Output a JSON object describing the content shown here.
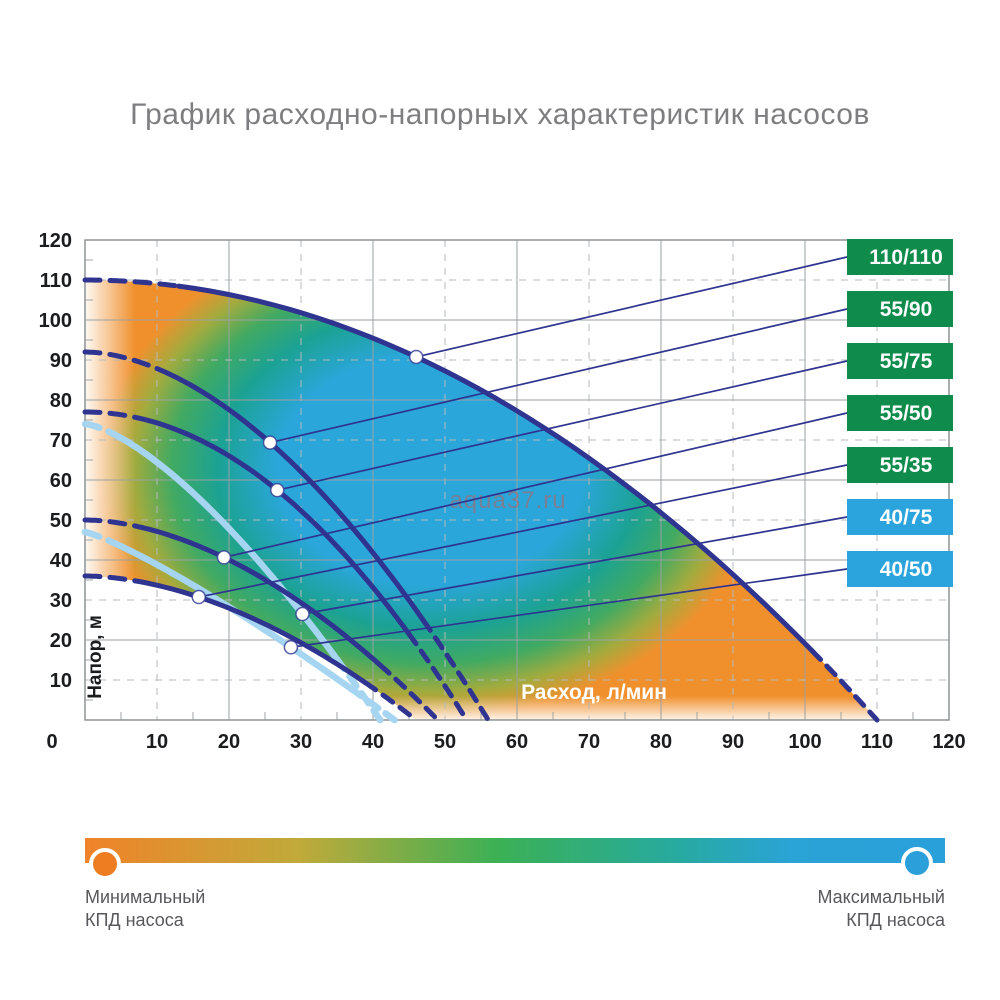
{
  "title": "График расходно-напорных характеристик насосов",
  "watermark": "aqua37.ru",
  "chart_data": {
    "type": "line",
    "title": "График расходно-напорных характеристик насосов",
    "xlabel": "Расход, л/мин",
    "ylabel": "Напор, м",
    "xlim": [
      0,
      120
    ],
    "ylim": [
      0,
      120
    ],
    "x_ticks": [
      0,
      10,
      20,
      30,
      40,
      50,
      60,
      70,
      80,
      90,
      100,
      110,
      120
    ],
    "y_ticks": [
      10,
      20,
      30,
      40,
      50,
      60,
      70,
      80,
      90,
      100,
      110,
      120
    ],
    "grid": "solid every 20 units, dashed every 10 units",
    "legend_position": "right badges",
    "series": [
      {
        "label": "110/110",
        "badge_color": "#0f8c4c",
        "curve_color": "#2e3490",
        "curve_width": 5,
        "h0": 110,
        "qmax": 110,
        "exponent": 2.0,
        "marker_q": 46,
        "key_points": [
          [
            0,
            110
          ],
          [
            46,
            91
          ],
          [
            110,
            0
          ]
        ],
        "dash_until_q": 13,
        "dash_from_q": 101
      },
      {
        "label": "55/90",
        "badge_color": "#0f8c4c",
        "curve_color": "#2e3490",
        "curve_width": 5,
        "h0": 92,
        "qmax": 56,
        "exponent": 1.8,
        "marker_q": 25.7,
        "key_points": [
          [
            0,
            92
          ],
          [
            26,
            69
          ],
          [
            56,
            0
          ]
        ],
        "dash_until_q": 10,
        "dash_from_q": 47
      },
      {
        "label": "55/75",
        "badge_color": "#0f8c4c",
        "curve_color": "#2e3490",
        "curve_width": 5,
        "h0": 77,
        "qmax": 53,
        "exponent": 2.0,
        "marker_q": 26.7,
        "key_points": [
          [
            0,
            77
          ],
          [
            27,
            56
          ],
          [
            53,
            0
          ]
        ],
        "dash_until_q": 9,
        "dash_from_q": 45
      },
      {
        "label": "55/50",
        "badge_color": "#0f8c4c",
        "curve_color": "#2e3490",
        "curve_width": 5,
        "h0": 50,
        "qmax": 49,
        "exponent": 1.8,
        "marker_q": 19.3,
        "key_points": [
          [
            0,
            50
          ],
          [
            19,
            40
          ],
          [
            49,
            0
          ]
        ],
        "dash_until_q": 8,
        "dash_from_q": 41
      },
      {
        "label": "55/35",
        "badge_color": "#0f8c4c",
        "curve_color": "#2e3490",
        "curve_width": 5,
        "h0": 36,
        "qmax": 46,
        "exponent": 1.8,
        "marker_q": 15.8,
        "key_points": [
          [
            0,
            36
          ],
          [
            16,
            30
          ],
          [
            46,
            0
          ]
        ],
        "dash_until_q": 7,
        "dash_from_q": 39
      },
      {
        "label": "40/75",
        "badge_color": "#2ba4dd",
        "curve_color": "#a5d5f0",
        "curve_width": 6.5,
        "h0": 74,
        "qmax": 41,
        "exponent": 1.45,
        "marker_q": 30.2,
        "key_points": [
          [
            0,
            74
          ],
          [
            30,
            27
          ],
          [
            41,
            0
          ]
        ],
        "dash_until_q": 5,
        "dash_from_q": 35
      },
      {
        "label": "40/50",
        "badge_color": "#2ba4dd",
        "curve_color": "#a5d5f0",
        "curve_width": 6.5,
        "h0": 47,
        "qmax": 43,
        "exponent": 1.2,
        "marker_q": 28.6,
        "key_points": [
          [
            0,
            47
          ],
          [
            29,
            18
          ],
          [
            43,
            0
          ]
        ],
        "dash_until_q": 5,
        "dash_from_q": 37
      },
      {
        "label": "КПД (заливка)",
        "type": "efficiency-map",
        "colors": {
          "center_blue": "#2ba6db",
          "teal": "#1ca293",
          "green": "#41aa62",
          "olive": "#a3ab3e",
          "orange": "#f0902d"
        }
      }
    ]
  },
  "efficiency_legend": {
    "min_line1": "Минимальный",
    "min_line2": "КПД насоса",
    "max_line1": "Максимальный",
    "max_line2": "КПД насоса",
    "gradient": [
      "#f08329",
      "#c0aa3a",
      "#3bb055",
      "#27aaa0",
      "#2aa3d6",
      "#2aa0db"
    ],
    "min_dot_color": "#ee7d21",
    "max_dot_color": "#2a9fd9"
  }
}
